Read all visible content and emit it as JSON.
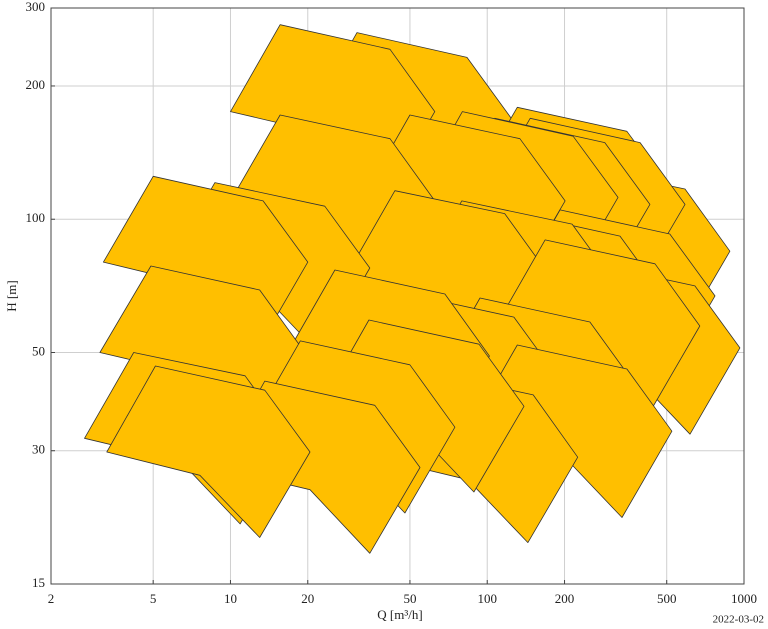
{
  "chart_data": {
    "type": "polygon",
    "xlabel": "Q [m³/h]",
    "ylabel": "H [m]",
    "date": "2022-03-02",
    "xscale": "log",
    "yscale": "log",
    "grid": true,
    "color": "#ffbf00",
    "edgecolor": "#333333",
    "xlim": [
      2,
      1000
    ],
    "ylim": [
      15,
      300
    ],
    "xticks": [
      2,
      5,
      10,
      20,
      50,
      100,
      200,
      500,
      1000
    ],
    "yticks": [
      15,
      30,
      50,
      100,
      200,
      300
    ],
    "series": [
      {
        "x": [
          31.1,
          83.4,
          125,
          79.6,
          46.6,
          20
        ],
        "values": [
          264,
          232,
          168,
          108,
          149,
          168
        ]
      },
      {
        "x": [
          15.6,
          41.8,
          62.5,
          40,
          23.3,
          10
        ],
        "values": [
          275,
          242,
          175,
          112,
          156,
          175
        ]
      },
      {
        "x": [
          219,
          589,
          881,
          563,
          329,
          141
        ],
        "values": [
          132,
          117,
          84.7,
          54.2,
          75.2,
          84.7
        ]
      },
      {
        "x": [
          131,
          350,
          524,
          335,
          195,
          84.1
        ],
        "values": [
          179,
          158,
          115,
          73.3,
          102,
          115
        ]
      },
      {
        "x": [
          147,
          394,
          589,
          376,
          219,
          94.5
        ],
        "values": [
          169,
          149,
          108,
          69.2,
          96,
          108
        ]
      },
      {
        "x": [
          107,
          287,
          430,
          275,
          160,
          69.1
        ],
        "values": [
          169,
          149,
          108,
          69.2,
          96,
          108
        ]
      },
      {
        "x": [
          80,
          216,
          323,
          206,
          120,
          51.9
        ],
        "values": [
          175,
          154,
          112,
          71.4,
          99.1,
          112
        ]
      },
      {
        "x": [
          50,
          134,
          201,
          128,
          74.8,
          32.2
        ],
        "values": [
          172,
          152,
          110,
          70.3,
          97.5,
          110
        ]
      },
      {
        "x": [
          15.6,
          41.8,
          62.5,
          40,
          23.3,
          10
        ],
        "values": [
          172,
          152,
          110,
          70.3,
          97.5,
          110
        ]
      },
      {
        "x": [
          192,
          514,
          771,
          492,
          287,
          124
        ],
        "values": [
          105,
          92.6,
          67.1,
          42.9,
          59.6,
          67.1
        ]
      },
      {
        "x": [
          122,
          329,
          492,
          314,
          184,
          79
        ],
        "values": [
          104,
          91.6,
          66.4,
          42.4,
          58.9,
          66.4
        ]
      },
      {
        "x": [
          79.6,
          214,
          320,
          204,
          119,
          51.4
        ],
        "values": [
          110,
          97.5,
          70.7,
          45.2,
          62.7,
          70.7
        ]
      },
      {
        "x": [
          43.7,
          117,
          175,
          112,
          65.4,
          28.2
        ],
        "values": [
          116,
          103,
          74.5,
          47.5,
          66.1,
          74.5
        ]
      },
      {
        "x": [
          8.7,
          23.3,
          34.9,
          22.3,
          13,
          5.6
        ],
        "values": [
          121,
          107,
          77.6,
          49.6,
          68.9,
          77.6
        ]
      },
      {
        "x": [
          5,
          13.4,
          20,
          12.8,
          7.5,
          3.2
        ],
        "values": [
          125,
          110,
          80,
          51.2,
          71,
          80
        ]
      },
      {
        "x": [
          240,
          644,
          964,
          616,
          360,
          155
        ],
        "values": [
          80,
          70.7,
          51.2,
          32.7,
          45.4,
          51.2
        ]
      },
      {
        "x": [
          168,
          450,
          673,
          430,
          251,
          108
        ],
        "values": [
          89.8,
          79.3,
          57.4,
          36.7,
          50.9,
          57.4
        ]
      },
      {
        "x": [
          93.7,
          251,
          376,
          240,
          140,
          60.4
        ],
        "values": [
          66.4,
          58.6,
          42.4,
          27.2,
          37.7,
          42.4
        ]
      },
      {
        "x": [
          47.4,
          127,
          190,
          121,
          71,
          30.5
        ],
        "values": [
          68.1,
          60.1,
          43.6,
          27.9,
          38.6,
          43.6
        ]
      },
      {
        "x": [
          25.5,
          68.4,
          102,
          65.4,
          38.2,
          16.4
        ],
        "values": [
          76.8,
          67.8,
          49.1,
          31.4,
          43.6,
          49.1
        ]
      },
      {
        "x": [
          4.9,
          13,
          19.5,
          12.4,
          7.3,
          3.1
        ],
        "values": [
          78.4,
          69.2,
          50,
          32,
          44.5,
          50
        ]
      },
      {
        "x": [
          131,
          350,
          524,
          335,
          195,
          84.1
        ],
        "values": [
          52,
          45.9,
          33.2,
          21.2,
          29.5,
          33.2
        ]
      },
      {
        "x": [
          56.2,
          151,
          225,
          144,
          84.1,
          36.2
        ],
        "values": [
          45.4,
          40.1,
          29,
          18.6,
          25.8,
          29
        ]
      },
      {
        "x": [
          34.6,
          92.9,
          139,
          88.7,
          51.9,
          22.3
        ],
        "values": [
          59.2,
          52.2,
          37.8,
          24.2,
          33.6,
          37.8
        ]
      },
      {
        "x": [
          18.7,
          50,
          74.8,
          47.8,
          27.9,
          12
        ],
        "values": [
          53.1,
          46.9,
          33.9,
          21.7,
          30.1,
          33.9
        ]
      },
      {
        "x": [
          13.6,
          36.5,
          54.7,
          34.9,
          20.4,
          8.8
        ],
        "values": [
          43.1,
          38,
          27.5,
          17.6,
          24.5,
          27.5
        ]
      },
      {
        "x": [
          4.2,
          11.4,
          17.1,
          10.9,
          6.4,
          2.7
        ],
        "values": [
          50,
          44.3,
          32,
          20.5,
          28.4,
          32
        ]
      },
      {
        "x": [
          5.1,
          13.6,
          20.4,
          13,
          7.6,
          3.3
        ],
        "values": [
          46.6,
          41.1,
          29.8,
          19.1,
          26.4,
          29.8
        ]
      }
    ]
  }
}
